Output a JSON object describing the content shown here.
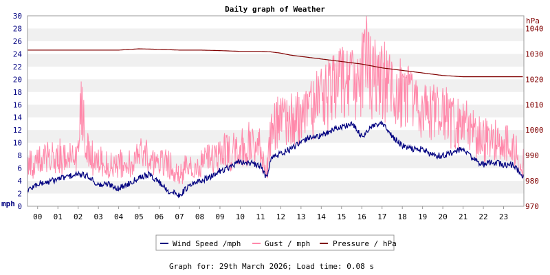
{
  "chart_data": {
    "type": "line",
    "title": "Daily graph of Weather",
    "left_unit": "mph",
    "right_unit": "hPa",
    "x_ticks": [
      "00",
      "01",
      "02",
      "03",
      "04",
      "05",
      "06",
      "07",
      "08",
      "09",
      "10",
      "11",
      "12",
      "13",
      "14",
      "15",
      "16",
      "17",
      "18",
      "19",
      "20",
      "21",
      "22",
      "23"
    ],
    "x_range_hours": [
      -0.5,
      24
    ],
    "left_axis": {
      "range": [
        0,
        30
      ],
      "ticks": [
        0,
        2,
        4,
        6,
        8,
        10,
        12,
        14,
        16,
        18,
        20,
        22,
        24,
        26,
        28,
        30
      ]
    },
    "right_axis": {
      "range": [
        970,
        1045
      ],
      "ticks": [
        970,
        980,
        990,
        1000,
        1010,
        1020,
        1030,
        1040
      ]
    },
    "grid": "horizontal bands",
    "legend_position": "bottom",
    "colors": {
      "wind": "#000080",
      "gust": "#ff88aa",
      "pressure": "#800000",
      "title": "#000000",
      "right_axis_text": "#800000",
      "band": "#f0f0f0"
    },
    "series": [
      {
        "name": "Wind Speed /mph",
        "axis": "left",
        "x": [
          -0.5,
          0,
          0.5,
          1,
          1.5,
          2,
          2.5,
          3,
          3.5,
          4,
          4.5,
          5,
          5.5,
          6,
          6.5,
          7,
          7.5,
          8,
          8.5,
          9,
          9.5,
          10,
          10.5,
          11,
          11.3,
          11.5,
          12,
          12.5,
          13,
          13.5,
          14,
          14.5,
          15,
          15.5,
          16,
          16.5,
          17,
          17.5,
          18,
          18.5,
          19,
          19.5,
          20,
          20.5,
          21,
          21.5,
          22,
          22.5,
          23,
          23.5,
          24
        ],
        "values": [
          2.5,
          3.5,
          3.8,
          4.3,
          4.7,
          5.0,
          4.8,
          3.3,
          3.5,
          2.8,
          3.6,
          4.6,
          5.0,
          3.8,
          2.3,
          1.8,
          3.2,
          4.0,
          4.5,
          5.6,
          6.2,
          7.0,
          6.8,
          6.3,
          4.5,
          7.5,
          8.3,
          9.0,
          10.0,
          11.0,
          11.0,
          12.0,
          12.5,
          13.0,
          11.0,
          12.5,
          13.0,
          11.0,
          9.5,
          9.0,
          9.0,
          8.0,
          8.0,
          8.5,
          9.0,
          7.5,
          6.5,
          7.0,
          6.5,
          6.5,
          4.5
        ]
      },
      {
        "name": "Gust / mph",
        "axis": "left",
        "x": [
          -0.5,
          0,
          0.5,
          1,
          1.5,
          2,
          2.1,
          2.5,
          3,
          3.5,
          4,
          4.5,
          5,
          5.5,
          6,
          6.5,
          7,
          7.5,
          8,
          8.5,
          9,
          9.5,
          10,
          10.5,
          11,
          11.3,
          11.5,
          12,
          12.5,
          13,
          13.5,
          14,
          14.5,
          15,
          15.5,
          16,
          16.2,
          16.5,
          17,
          17.5,
          18,
          18.5,
          19,
          19.5,
          20,
          20.5,
          21,
          21.5,
          22,
          22.5,
          23,
          23.5,
          24
        ],
        "values": [
          7,
          8,
          8.5,
          9,
          9,
          9,
          21,
          9,
          8,
          7,
          8,
          8,
          9,
          8.5,
          8,
          7,
          6,
          7,
          8,
          9,
          10,
          10,
          11,
          11,
          11,
          6,
          14,
          16,
          16,
          17,
          18,
          20,
          22,
          24,
          24,
          25,
          30,
          24,
          24,
          23,
          21,
          20,
          18,
          17,
          17,
          16,
          15,
          13,
          12,
          12,
          11,
          10,
          7
        ]
      },
      {
        "name": "Pressure / hPa",
        "axis": "right",
        "x": [
          -0.5,
          1,
          2,
          3,
          4,
          5,
          6,
          7,
          8,
          9,
          10,
          11,
          11.5,
          12,
          12.5,
          13,
          14,
          15,
          16,
          17,
          18,
          19,
          20,
          21,
          22,
          23,
          24
        ],
        "values": [
          1031.5,
          1031.5,
          1031.5,
          1031.5,
          1031.5,
          1032,
          1031.8,
          1031.5,
          1031.5,
          1031.3,
          1031,
          1031,
          1030.8,
          1030.3,
          1029.5,
          1029,
          1028,
          1027,
          1026,
          1024.5,
          1023.5,
          1022.5,
          1021.5,
          1021,
          1021,
          1021,
          1021
        ]
      }
    ],
    "footer": "Graph for: 29th March 2026; Load time: 0.08 s"
  }
}
